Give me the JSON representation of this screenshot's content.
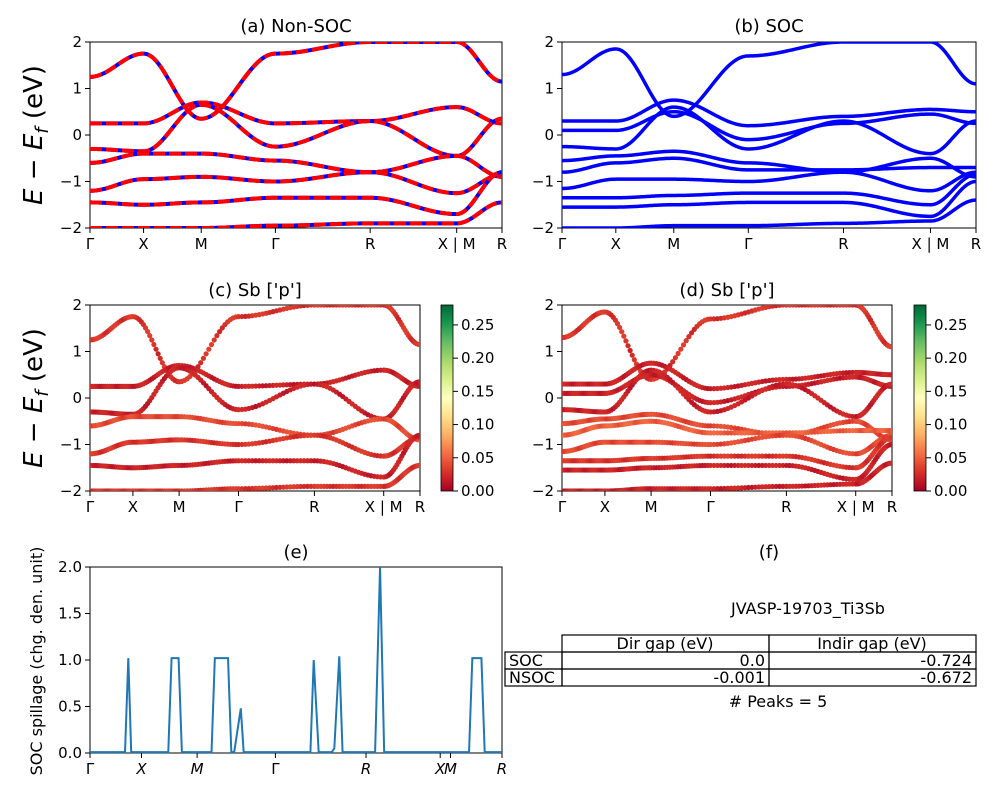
{
  "figure": {
    "ylabel": "E − E_f (eV)",
    "kpath_labels": [
      "Γ",
      "X",
      "M",
      "Γ",
      "R",
      "X | M",
      "R"
    ],
    "energy_range": [
      -2,
      2
    ],
    "energy_ticks": [
      "2",
      "1",
      "0",
      "−1",
      "−2"
    ]
  },
  "panels": {
    "a": {
      "title": "(a) Non-SOC",
      "line_colors": [
        "#ff0000",
        "#0000ff"
      ],
      "style": "red-blue dashed overlay"
    },
    "b": {
      "title": "(b) SOC",
      "line_color": "#0000ff"
    },
    "c": {
      "title": "(c)  Sb ['p']"
    },
    "d": {
      "title": "(d) Sb ['p']"
    },
    "e": {
      "title": "(e)",
      "ylabel": "SOC spillage (chg. den. unit)",
      "yticks": [
        "2.0",
        "1.5",
        "1.0",
        "0.5",
        "0.0"
      ],
      "xticks": [
        "Γ",
        "X",
        "M",
        "Γ",
        "R",
        "X",
        "M",
        "R"
      ]
    },
    "f": {
      "title": "(f)"
    }
  },
  "colorbar": {
    "ticks": [
      "0.25",
      "0.20",
      "0.15",
      "0.10",
      "0.05",
      "0.00"
    ],
    "range": [
      0,
      0.28
    ],
    "colormap": "RdYlGn",
    "colors": [
      "#a50026",
      "#d73027",
      "#f46d43",
      "#fdae61",
      "#fee08b",
      "#ffffbf",
      "#d9ef8b",
      "#a6d96a",
      "#66bd63",
      "#1a9850",
      "#006837"
    ]
  },
  "table": {
    "material": "JVASP-19703_Ti3Sb",
    "columns": [
      "Dir gap (eV)",
      "Indir gap (eV)"
    ],
    "rows": [
      {
        "label": "SOC",
        "dir": "0.0",
        "indir": "-0.724"
      },
      {
        "label": "NSOC",
        "dir": "-0.001",
        "indir": "-0.672"
      }
    ],
    "peaks_label": "# Peaks = 5"
  },
  "chart_data": [
    {
      "type": "line",
      "title": "(a) Non-SOC",
      "ylabel": "E − E_f (eV)",
      "ylim": [
        -2,
        2
      ],
      "categories": [
        "Γ",
        "X",
        "M",
        "Γ",
        "R",
        "X | M",
        "R"
      ],
      "series": [
        {
          "values": [
            1.25,
            1.75,
            0.35,
            1.75,
            2.0,
            2.0,
            1.15
          ]
        },
        {
          "values": [
            0.25,
            0.25,
            0.7,
            0.25,
            0.3,
            0.6,
            0.25
          ]
        },
        {
          "values": [
            -0.3,
            -0.35,
            0.65,
            -0.25,
            0.3,
            -0.45,
            0.35
          ]
        },
        {
          "values": [
            -0.6,
            -0.4,
            -0.4,
            -0.55,
            -0.8,
            -0.45,
            -0.9
          ]
        },
        {
          "values": [
            -1.2,
            -0.95,
            -0.9,
            -1.0,
            -0.8,
            -1.25,
            -0.85
          ]
        },
        {
          "values": [
            -1.45,
            -1.5,
            -1.45,
            -1.35,
            -1.35,
            -1.7,
            -0.8
          ]
        },
        {
          "values": [
            -2.0,
            -2.0,
            -2.0,
            -1.95,
            -1.9,
            -1.9,
            -1.45
          ]
        }
      ]
    },
    {
      "type": "line",
      "title": "(b) SOC",
      "ylim": [
        -2,
        2
      ],
      "categories": [
        "Γ",
        "X",
        "M",
        "Γ",
        "R",
        "X | M",
        "R"
      ],
      "series": [
        {
          "values": [
            1.3,
            1.85,
            0.4,
            1.7,
            2.0,
            2.0,
            1.1
          ]
        },
        {
          "values": [
            0.3,
            0.3,
            0.75,
            0.2,
            0.4,
            0.55,
            0.5
          ]
        },
        {
          "values": [
            0.1,
            0.1,
            0.5,
            -0.1,
            0.25,
            0.45,
            0.25
          ]
        },
        {
          "values": [
            -0.25,
            -0.3,
            0.6,
            -0.3,
            0.3,
            -0.4,
            0.3
          ]
        },
        {
          "values": [
            -0.55,
            -0.45,
            -0.35,
            -0.6,
            -0.8,
            -0.5,
            -0.9
          ]
        },
        {
          "values": [
            -0.8,
            -0.6,
            -0.5,
            -0.75,
            -0.75,
            -0.7,
            -0.7
          ]
        },
        {
          "values": [
            -1.15,
            -0.95,
            -0.95,
            -1.0,
            -0.8,
            -1.2,
            -0.8
          ]
        },
        {
          "values": [
            -1.35,
            -1.35,
            -1.3,
            -1.25,
            -1.25,
            -1.5,
            -0.85
          ]
        },
        {
          "values": [
            -1.55,
            -1.55,
            -1.5,
            -1.45,
            -1.45,
            -1.75,
            -1.0
          ]
        },
        {
          "values": [
            -2.0,
            -2.0,
            -1.95,
            -1.95,
            -1.9,
            -1.85,
            -1.4
          ]
        }
      ]
    },
    {
      "type": "scatter",
      "title": "(c)  Sb ['p']",
      "ylim": [
        -2,
        2
      ],
      "categories": [
        "Γ",
        "X",
        "M",
        "Γ",
        "R",
        "X | M",
        "R"
      ],
      "colorbar_range": [
        0,
        0.28
      ],
      "series": [
        {
          "values": [
            1.25,
            1.75,
            0.35,
            1.75,
            2.0,
            2.0,
            1.15
          ],
          "weight": 0.02
        },
        {
          "values": [
            0.25,
            0.25,
            0.7,
            0.25,
            0.3,
            0.6,
            0.25
          ],
          "weight": 0.01
        },
        {
          "values": [
            -0.3,
            -0.35,
            0.65,
            -0.25,
            0.3,
            -0.45,
            0.35
          ],
          "weight": 0.01
        },
        {
          "values": [
            -0.6,
            -0.4,
            -0.4,
            -0.55,
            -0.8,
            -0.45,
            -0.9
          ],
          "weight": 0.03
        },
        {
          "values": [
            -1.2,
            -0.95,
            -0.9,
            -1.0,
            -0.8,
            -1.25,
            -0.85
          ],
          "weight": 0.02
        },
        {
          "values": [
            -1.45,
            -1.5,
            -1.45,
            -1.35,
            -1.35,
            -1.7,
            -0.8
          ],
          "weight": 0.01
        },
        {
          "values": [
            -2.0,
            -2.0,
            -2.0,
            -1.95,
            -1.9,
            -1.9,
            -1.45
          ],
          "weight": 0.02
        }
      ]
    },
    {
      "type": "scatter",
      "title": "(d) Sb ['p']",
      "ylim": [
        -2,
        2
      ],
      "categories": [
        "Γ",
        "X",
        "M",
        "Γ",
        "R",
        "X | M",
        "R"
      ],
      "colorbar_range": [
        0,
        0.28
      ],
      "series": [
        {
          "values": [
            1.3,
            1.85,
            0.4,
            1.7,
            2.0,
            2.0,
            1.1
          ],
          "weight": 0.02
        },
        {
          "values": [
            0.3,
            0.3,
            0.75,
            0.2,
            0.4,
            0.55,
            0.5
          ],
          "weight": 0.01
        },
        {
          "values": [
            0.1,
            0.1,
            0.5,
            -0.1,
            0.25,
            0.45,
            0.25
          ],
          "weight": 0.01
        },
        {
          "values": [
            -0.25,
            -0.3,
            0.6,
            -0.3,
            0.3,
            -0.4,
            0.3
          ],
          "weight": 0.01
        },
        {
          "values": [
            -0.55,
            -0.45,
            -0.35,
            -0.6,
            -0.8,
            -0.5,
            -0.9
          ],
          "weight": 0.03
        },
        {
          "values": [
            -0.8,
            -0.6,
            -0.5,
            -0.75,
            -0.75,
            -0.7,
            -0.7
          ],
          "weight": 0.04
        },
        {
          "values": [
            -1.15,
            -0.95,
            -0.95,
            -1.0,
            -0.8,
            -1.2,
            -0.8
          ],
          "weight": 0.03
        },
        {
          "values": [
            -1.35,
            -1.35,
            -1.3,
            -1.25,
            -1.25,
            -1.5,
            -0.85
          ],
          "weight": 0.02
        },
        {
          "values": [
            -1.55,
            -1.55,
            -1.5,
            -1.45,
            -1.45,
            -1.75,
            -1.0
          ],
          "weight": 0.01
        },
        {
          "values": [
            -2.0,
            -2.0,
            -1.95,
            -1.95,
            -1.9,
            -1.85,
            -1.4
          ],
          "weight": 0.01
        }
      ]
    },
    {
      "type": "line",
      "title": "(e)",
      "ylabel": "SOC spillage (chg. den. unit)",
      "ylim": [
        0,
        2.0
      ],
      "xlim": [
        0,
        100
      ],
      "x_tick_labels": [
        "Γ",
        "X",
        "M",
        "Γ",
        "R",
        "X",
        "M",
        "R"
      ],
      "x_tick_positions": [
        0,
        12.5,
        26,
        45,
        67,
        85,
        87.5,
        100
      ],
      "color": "#1f77b4",
      "x": [
        0,
        7.5,
        8.5,
        9.3,
        10,
        11,
        19,
        19.8,
        21.5,
        22.3,
        29.5,
        30.3,
        33.5,
        34.3,
        35,
        36.6,
        37.3,
        38,
        44,
        51.5,
        53.5,
        54.3,
        55.5,
        58.7,
        59.3,
        60.5,
        61.3,
        69.2,
        70.4,
        71.4,
        72.5,
        92,
        92.8,
        95,
        95.8,
        97.5,
        100
      ],
      "y": [
        0.01,
        0.01,
        0.01,
        1.02,
        0.01,
        0.01,
        0.01,
        1.02,
        1.02,
        0.01,
        0.01,
        1.02,
        1.02,
        0.01,
        0.01,
        0.48,
        0.01,
        0.01,
        0.01,
        0.01,
        0.01,
        1.0,
        0.01,
        0.01,
        0.05,
        1.04,
        0.01,
        0.01,
        2.0,
        0.01,
        0.01,
        0.01,
        1.02,
        1.02,
        0.01,
        0.01,
        0.01
      ]
    },
    {
      "type": "table",
      "title": "(f)",
      "columns": [
        "",
        "Dir gap (eV)",
        "Indir gap (eV)"
      ],
      "rows": [
        [
          "SOC",
          "0.0",
          "-0.724"
        ],
        [
          "NSOC",
          "-0.001",
          "-0.672"
        ]
      ]
    }
  ]
}
